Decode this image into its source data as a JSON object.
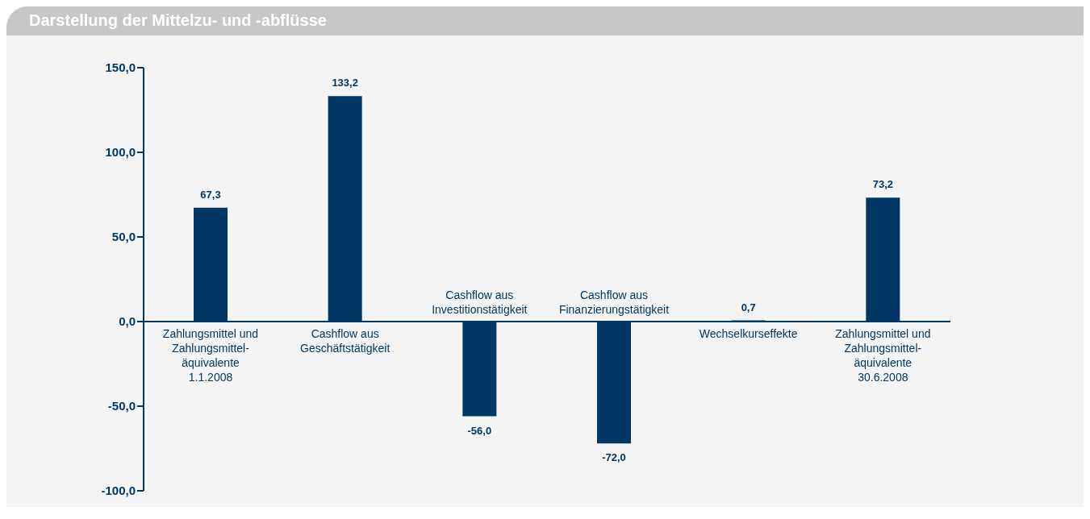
{
  "chart_data": {
    "type": "bar",
    "title": "Darstellung der Mittelzu- und -abflüsse",
    "categories": [
      "Zahlungsmittel und Zahlungsmittel-äquivalente 1.1.2008",
      "Cashflow aus Geschäftstätigkeit",
      "Cashflow aus Investitionstätigkeit",
      "Cashflow aus Finanzierungstätigkeit",
      "Wechselkurseffekte",
      "Zahlungsmittel und Zahlungsmittel-äquivalente 30.6.2008"
    ],
    "values": [
      67.3,
      133.2,
      -56.0,
      -72.0,
      0.7,
      73.2
    ],
    "value_labels": [
      "67,3",
      "133,2",
      "-56,0",
      "-72,0",
      "0,7",
      "73,2"
    ],
    "color": "#003764",
    "ylim": [
      -100,
      150
    ],
    "yticks": [
      {
        "value": -100,
        "label": "-100,0"
      },
      {
        "value": -50,
        "label": "-50,0"
      },
      {
        "value": 0,
        "label": "0,0"
      },
      {
        "value": 50,
        "label": "50,0"
      },
      {
        "value": 100,
        "label": "100,0"
      },
      {
        "value": 150,
        "label": "150,0"
      }
    ],
    "grid": false,
    "legend": false
  }
}
